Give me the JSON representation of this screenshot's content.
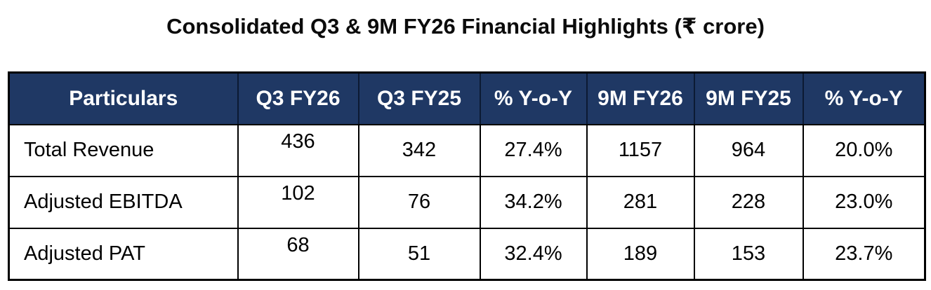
{
  "title": "Consolidated Q3 & 9M FY26 Financial Highlights (₹ crore)",
  "colors": {
    "header_bg": "#1F3864",
    "header_text": "#FFFFFF",
    "body_text": "#000000",
    "border": "#000000",
    "background": "#FFFFFF"
  },
  "table": {
    "columns": [
      "Particulars",
      "Q3 FY26",
      "Q3 FY25",
      "% Y-o-Y",
      "9M FY26",
      "9M FY25",
      "% Y-o-Y"
    ],
    "rows": [
      {
        "label": "Total Revenue",
        "values": [
          "436",
          "342",
          "27.4%",
          "1157",
          "964",
          "20.0%"
        ]
      },
      {
        "label": "Adjusted EBITDA",
        "values": [
          "102",
          "76",
          "34.2%",
          "281",
          "228",
          "23.0%"
        ]
      },
      {
        "label": "Adjusted PAT",
        "values": [
          "68",
          "51",
          "32.4%",
          "189",
          "153",
          "23.7%"
        ]
      }
    ]
  },
  "chart_data": {
    "type": "table",
    "title": "Consolidated Q3 & 9M FY26 Financial Highlights (₹ crore)",
    "unit": "₹ crore",
    "columns": [
      "Particulars",
      "Q3 FY26",
      "Q3 FY25",
      "% Y-o-Y",
      "9M FY26",
      "9M FY25",
      "% Y-o-Y"
    ],
    "rows": [
      [
        "Total Revenue",
        436,
        342,
        "27.4%",
        1157,
        964,
        "20.0%"
      ],
      [
        "Adjusted EBITDA",
        102,
        76,
        "34.2%",
        281,
        228,
        "23.0%"
      ],
      [
        "Adjusted PAT",
        68,
        51,
        "32.4%",
        189,
        153,
        "23.7%"
      ]
    ]
  }
}
